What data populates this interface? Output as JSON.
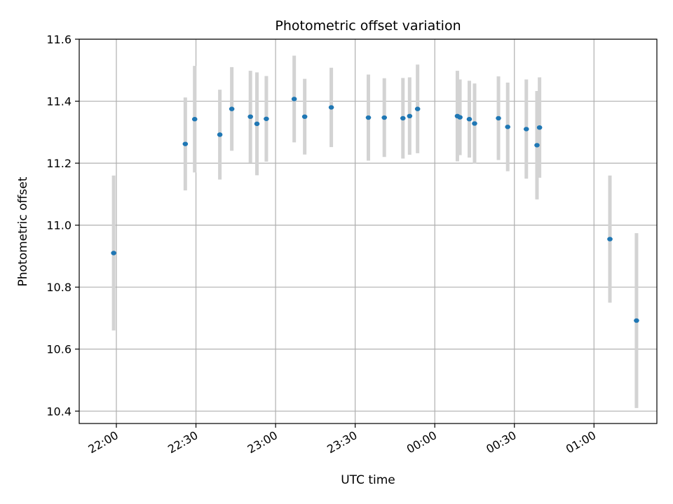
{
  "chart_data": {
    "type": "scatter",
    "title": "Photometric offset variation",
    "xlabel": "UTC time",
    "ylabel": "Photometric offset",
    "x_unit": "UTC time (hours; values above 24 are after midnight, next day)",
    "xlim": [
      21.7667,
      25.395
    ],
    "ylim": [
      10.36,
      11.6
    ],
    "grid": true,
    "marker_color": "#1f77b4",
    "errorbar_color": "#d3d3d3",
    "x_ticks": [
      {
        "value": 22.0,
        "label": "22:00"
      },
      {
        "value": 22.5,
        "label": "22:30"
      },
      {
        "value": 23.0,
        "label": "23:00"
      },
      {
        "value": 23.5,
        "label": "23:30"
      },
      {
        "value": 24.0,
        "label": "00:00"
      },
      {
        "value": 24.5,
        "label": "00:30"
      },
      {
        "value": 25.0,
        "label": "01:00"
      }
    ],
    "y_ticks": [
      {
        "value": 10.4,
        "label": "10.4"
      },
      {
        "value": 10.6,
        "label": "10.6"
      },
      {
        "value": 10.8,
        "label": "10.8"
      },
      {
        "value": 11.0,
        "label": "11.0"
      },
      {
        "value": 11.2,
        "label": "11.2"
      },
      {
        "value": 11.4,
        "label": "11.4"
      },
      {
        "value": 11.6,
        "label": "11.6"
      }
    ],
    "points": [
      {
        "x": 21.983,
        "y": 10.91,
        "err": 0.25
      },
      {
        "x": 22.433,
        "y": 11.262,
        "err": 0.15
      },
      {
        "x": 22.492,
        "y": 11.342,
        "err": 0.172
      },
      {
        "x": 22.65,
        "y": 11.292,
        "err": 0.145
      },
      {
        "x": 22.725,
        "y": 11.375,
        "err": 0.135
      },
      {
        "x": 22.842,
        "y": 11.35,
        "err": 0.148
      },
      {
        "x": 22.883,
        "y": 11.327,
        "err": 0.166
      },
      {
        "x": 22.942,
        "y": 11.343,
        "err": 0.138
      },
      {
        "x": 23.117,
        "y": 11.407,
        "err": 0.14
      },
      {
        "x": 23.183,
        "y": 11.35,
        "err": 0.122
      },
      {
        "x": 23.35,
        "y": 11.38,
        "err": 0.128
      },
      {
        "x": 23.583,
        "y": 11.347,
        "err": 0.139
      },
      {
        "x": 23.683,
        "y": 11.347,
        "err": 0.127
      },
      {
        "x": 23.8,
        "y": 11.345,
        "err": 0.13
      },
      {
        "x": 23.842,
        "y": 11.352,
        "err": 0.125
      },
      {
        "x": 23.892,
        "y": 11.375,
        "err": 0.143
      },
      {
        "x": 24.142,
        "y": 11.352,
        "err": 0.146
      },
      {
        "x": 24.158,
        "y": 11.348,
        "err": 0.122
      },
      {
        "x": 24.217,
        "y": 11.342,
        "err": 0.124
      },
      {
        "x": 24.25,
        "y": 11.328,
        "err": 0.129
      },
      {
        "x": 24.4,
        "y": 11.345,
        "err": 0.135
      },
      {
        "x": 24.458,
        "y": 11.317,
        "err": 0.143
      },
      {
        "x": 24.575,
        "y": 11.31,
        "err": 0.16
      },
      {
        "x": 24.642,
        "y": 11.258,
        "err": 0.175
      },
      {
        "x": 24.658,
        "y": 11.315,
        "err": 0.162
      },
      {
        "x": 25.1,
        "y": 10.955,
        "err": 0.205
      },
      {
        "x": 25.267,
        "y": 10.692,
        "err": 0.282
      }
    ]
  }
}
